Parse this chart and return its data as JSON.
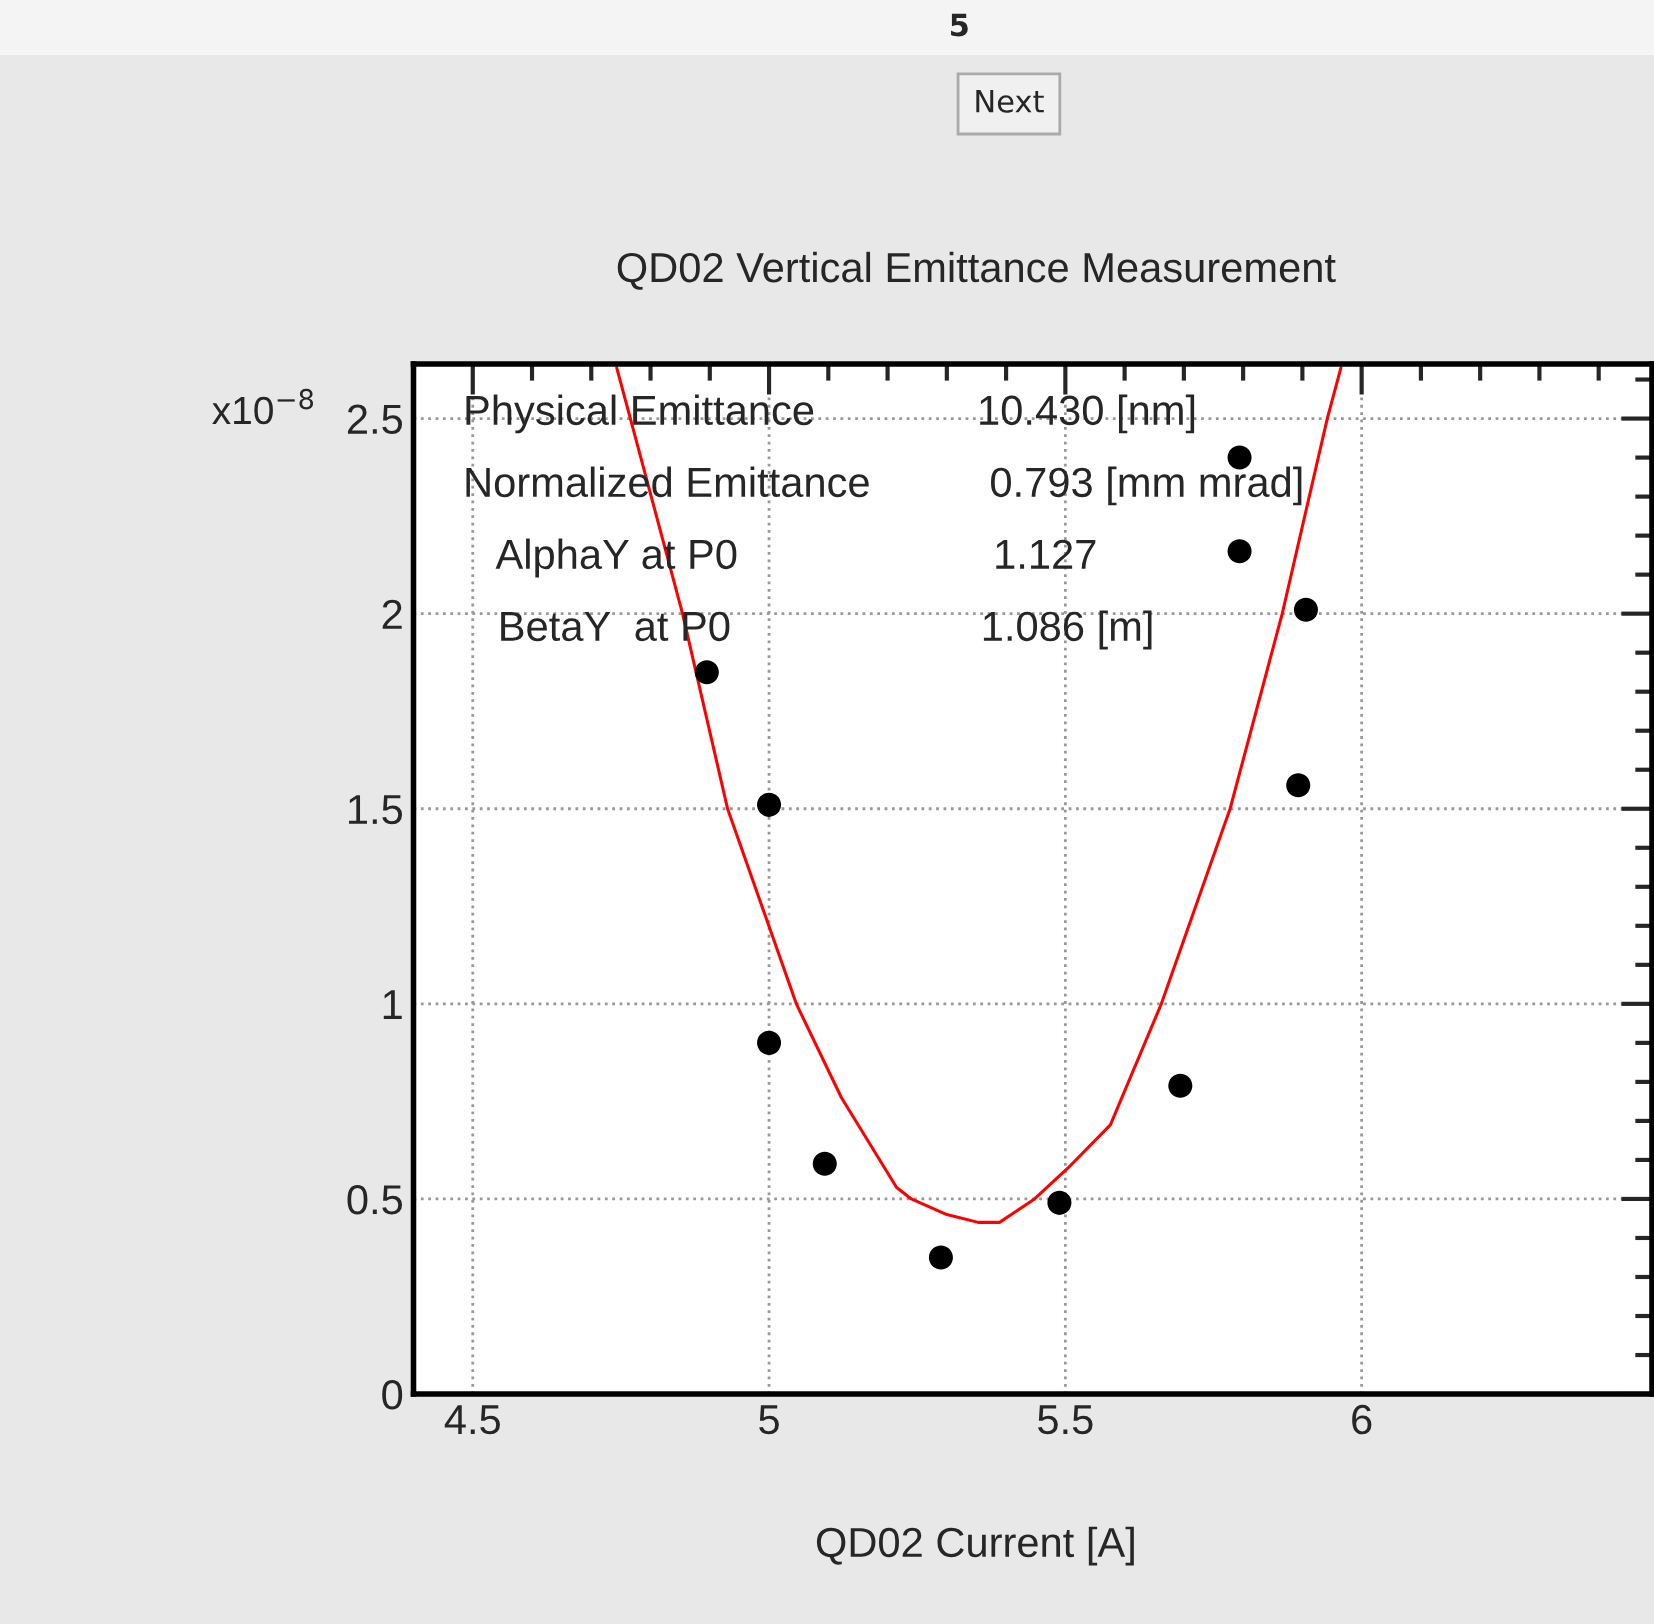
{
  "chart_data": {
    "type": "scatter",
    "title": "QD02 Vertical Emittance Measurement",
    "xlabel": "QD02 Current [A]",
    "xlim": [
      4.4,
      6.49
    ],
    "ylim": [
      0,
      2.64
    ],
    "xticks": [
      4.5,
      5,
      5.5,
      6
    ],
    "yticks": [
      0,
      0.5,
      1,
      1.5,
      2,
      2.5
    ],
    "grid": true,
    "series": [
      {
        "color": "#000000",
        "marker": "circle",
        "x": [
          4.895,
          5.0,
          5.0,
          5.094,
          5.29,
          5.49,
          5.694,
          5.794,
          5.794,
          5.906,
          5.893
        ],
        "values": [
          1.85,
          1.51,
          0.9,
          0.59,
          0.35,
          0.49,
          0.79,
          2.4,
          2.16,
          2.01,
          1.56
        ]
      },
      {
        "type": "line",
        "color": "#ff0000",
        "marker": "none",
        "line_style": "solid",
        "x": [
          4.743,
          4.766,
          4.854,
          4.93,
          5.046,
          5.122,
          5.215,
          5.24,
          5.3,
          5.353,
          5.389,
          5.448,
          5.505,
          5.576,
          5.662,
          5.778,
          5.866,
          5.942,
          5.965
        ],
        "values": [
          2.63,
          2.5,
          2.0,
          1.5,
          1.0,
          0.76,
          0.53,
          0.5,
          0.46,
          0.44,
          0.44,
          0.5,
          0.58,
          0.69,
          1.0,
          1.5,
          2.0,
          2.5,
          2.63
        ]
      }
    ],
    "annotations": [
      "5",
      "Next",
      "x10$^{−8}$",
      "Physical Emittance",
      "10.430 [nm]",
      "Normalized Emittance",
      "0.793 [mm mrad]",
      "   AlphaY at P0",
      "1.127",
      "   BetaY  at P0",
      "1.086 [m]"
    ]
  }
}
